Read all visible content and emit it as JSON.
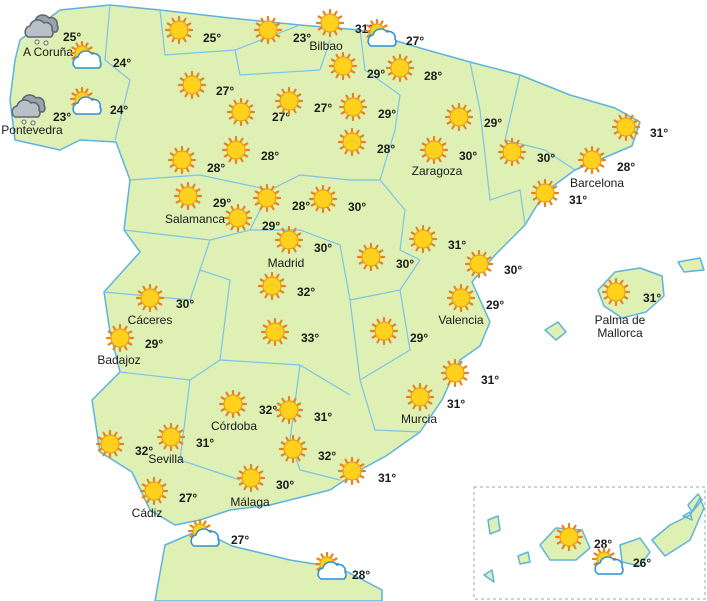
{
  "markers": [
    {
      "temperature": "25°",
      "city": "A Coruña"
    },
    {
      "temperature": "24°"
    },
    {
      "temperature": "23°",
      "city": "Pontevedra"
    },
    {
      "temperature": "24°"
    },
    {
      "temperature": "25°"
    },
    {
      "temperature": "23°"
    },
    {
      "temperature": "31°",
      "city": "Bilbao"
    },
    {
      "temperature": "27°"
    },
    {
      "temperature": "29°"
    },
    {
      "temperature": "28°"
    },
    {
      "temperature": "27°"
    },
    {
      "temperature": "27°"
    },
    {
      "temperature": "27°"
    },
    {
      "temperature": "29°"
    },
    {
      "temperature": "29°"
    },
    {
      "temperature": "31°"
    },
    {
      "temperature": "28°"
    },
    {
      "temperature": "28°"
    },
    {
      "temperature": "28°"
    },
    {
      "temperature": "30°",
      "city": "Zaragoza"
    },
    {
      "temperature": "30°"
    },
    {
      "temperature": "28°",
      "city": "Barcelona"
    },
    {
      "temperature": "31°"
    },
    {
      "temperature": "29°",
      "city": "Salamanca"
    },
    {
      "temperature": "28°"
    },
    {
      "temperature": "30°"
    },
    {
      "temperature": "29°"
    },
    {
      "temperature": "30°",
      "city": "Madrid"
    },
    {
      "temperature": "31°"
    },
    {
      "temperature": "30°"
    },
    {
      "temperature": "30°"
    },
    {
      "temperature": "31°",
      "city": "Palma de Mallorca"
    },
    {
      "temperature": "32°"
    },
    {
      "temperature": "30°",
      "city": "Cáceres"
    },
    {
      "temperature": "29°",
      "city": "Valencia"
    },
    {
      "temperature": "33°"
    },
    {
      "temperature": "29°"
    },
    {
      "temperature": "29°",
      "city": "Badajoz"
    },
    {
      "temperature": "31°"
    },
    {
      "temperature": "31°",
      "city": "Murcia"
    },
    {
      "temperature": "32°",
      "city": "Córdoba"
    },
    {
      "temperature": "31°"
    },
    {
      "temperature": "32°"
    },
    {
      "temperature": "31°",
      "city": "Sevilla"
    },
    {
      "temperature": "32°"
    },
    {
      "temperature": "31°"
    },
    {
      "temperature": "30°",
      "city": "Málaga"
    },
    {
      "temperature": "27°",
      "city": "Cádiz"
    },
    {
      "temperature": "27°"
    },
    {
      "temperature": "28°"
    },
    {
      "temperature": "26°"
    },
    {
      "temperature": "28°"
    }
  ]
}
